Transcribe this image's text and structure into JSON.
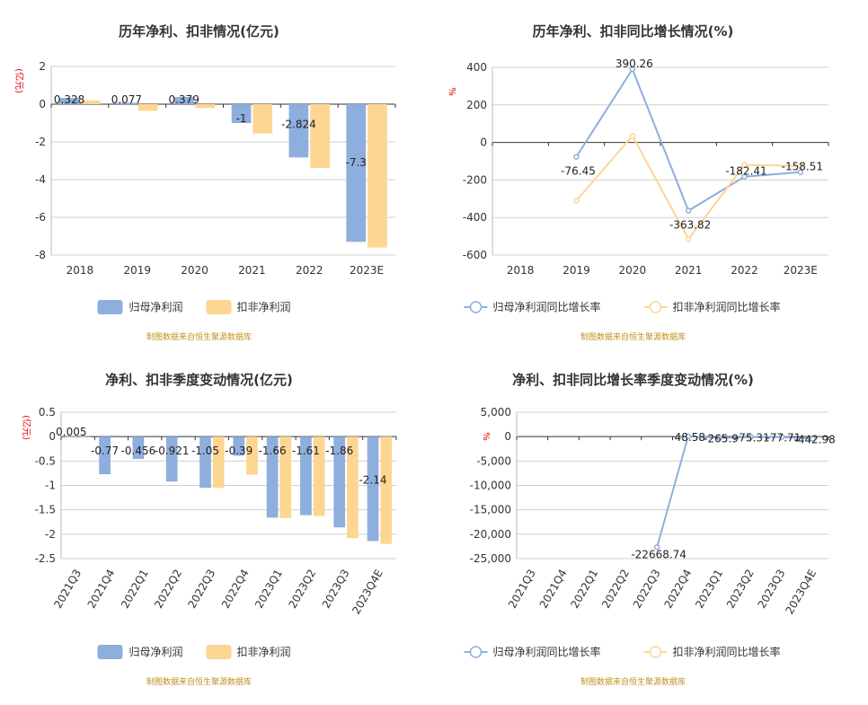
{
  "source_note": "制图数据来自恒生聚源数据库",
  "colors": {
    "blue": "#8eaedd",
    "orange": "#fdd692",
    "blue_line": "#8eaedd",
    "orange_line": "#fcd697"
  },
  "chart_data": [
    {
      "type": "bar",
      "title": "历年净利、扣非情况(亿元)",
      "ylabel": "(亿元)",
      "categories": [
        "2018",
        "2019",
        "2020",
        "2021",
        "2022",
        "2023E"
      ],
      "series": [
        {
          "name": "归母净利润",
          "values": [
            0.328,
            0.077,
            0.379,
            -1,
            -2.824,
            -7.3
          ],
          "labels": [
            "0.328",
            "0.077",
            "0.379",
            "-1",
            "-2.824",
            "-7.3"
          ]
        },
        {
          "name": "扣非净利润",
          "values": [
            0.2,
            -0.35,
            -0.2,
            -1.55,
            -3.38,
            -7.6
          ]
        }
      ],
      "ylim": [
        -8,
        2
      ],
      "yticks": [
        2,
        0,
        -2,
        -4,
        -6,
        -8
      ],
      "grid": true,
      "legend": "bottom"
    },
    {
      "type": "line",
      "title": "历年净利、扣非同比增长情况(%)",
      "ylabel": "%",
      "categories": [
        "2018",
        "2019",
        "2020",
        "2021",
        "2022",
        "2023E"
      ],
      "series": [
        {
          "name": "归母净利润同比增长率",
          "values": [
            null,
            -76.45,
            390.26,
            -363.82,
            -182.41,
            -158.51
          ],
          "labels": [
            "",
            "-76.45",
            "390.26",
            "-363.82",
            "-182.41",
            "-158.51"
          ]
        },
        {
          "name": "扣非净利润同比增长率",
          "values": [
            null,
            -310,
            35,
            -515,
            -120,
            -125
          ]
        }
      ],
      "ylim": [
        -600,
        400
      ],
      "yticks": [
        400,
        200,
        0,
        -200,
        -400,
        -600
      ],
      "grid": true,
      "legend": "bottom"
    },
    {
      "type": "bar",
      "title": "净利、扣非季度变动情况(亿元)",
      "ylabel": "(亿元)",
      "categories": [
        "2021Q3",
        "2021Q4",
        "2022Q1",
        "2022Q2",
        "2022Q3",
        "2022Q4",
        "2023Q1",
        "2023Q2",
        "2023Q3",
        "2023Q4E"
      ],
      "series": [
        {
          "name": "归母净利润",
          "values": [
            0.005,
            -0.77,
            -0.456,
            -0.921,
            -1.05,
            -0.39,
            -1.66,
            -1.61,
            -1.86,
            -2.14
          ],
          "labels": [
            "0.005",
            "-0.77",
            "-0.456",
            "-0.921",
            "-1.05",
            "-0.39",
            "-1.66",
            "-1.61",
            "-1.86",
            "-2.14"
          ]
        },
        {
          "name": "扣非净利润",
          "values": [
            -0.01,
            null,
            null,
            null,
            -1.05,
            -0.78,
            -1.67,
            -1.63,
            -2.08,
            -2.2
          ]
        }
      ],
      "ylim": [
        -2.5,
        0.5
      ],
      "yticks": [
        0.5,
        0,
        -0.5,
        -1,
        -1.5,
        -2,
        -2.5
      ],
      "grid": true,
      "legend": "bottom"
    },
    {
      "type": "line",
      "title": "净利、扣非同比增长率季度变动情况(%)",
      "ylabel": "%",
      "categories": [
        "2021Q3",
        "2021Q4",
        "2022Q1",
        "2022Q2",
        "2022Q3",
        "2022Q4",
        "2023Q1",
        "2023Q2",
        "2023Q3",
        "2023Q4E"
      ],
      "series": [
        {
          "name": "归母净利润同比增长率",
          "values": [
            null,
            null,
            null,
            null,
            -22668.74,
            48.58,
            -265.9,
            -75.31,
            -77.71,
            -442.98
          ],
          "labels": [
            "",
            "",
            "",
            "",
            "-22668.74",
            "48.58",
            "-265.9",
            "-75.31",
            "-77.71",
            "-442.98"
          ]
        },
        {
          "name": "扣非净利润同比增长率",
          "values": [
            null,
            null,
            null,
            null,
            null,
            null,
            null,
            null,
            null,
            null
          ]
        }
      ],
      "ylim": [
        -25000,
        5000
      ],
      "yticks": [
        5000,
        0,
        -5000,
        -10000,
        -15000,
        -20000,
        -25000
      ],
      "ytick_labels": [
        "5,000",
        "0",
        "-5,000",
        "-10,000",
        "-15,000",
        "-20,000",
        "-25,000"
      ],
      "grid": true,
      "legend": "bottom"
    }
  ]
}
